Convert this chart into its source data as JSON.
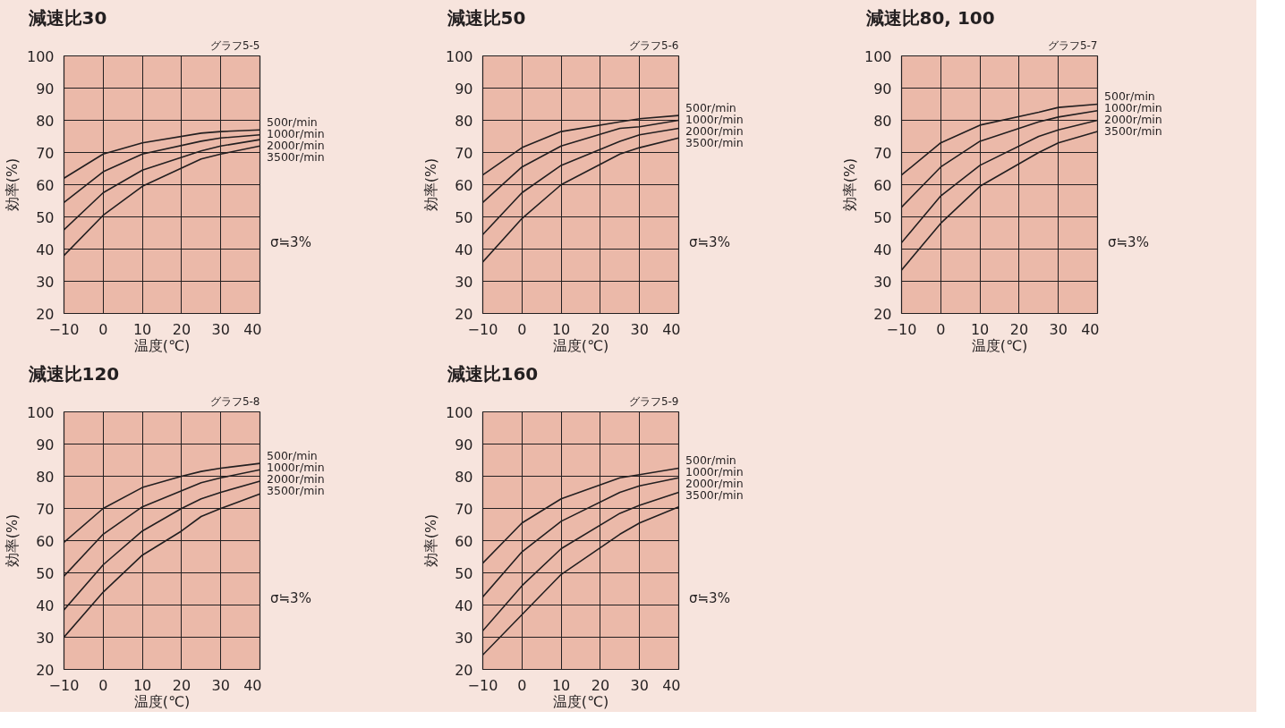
{
  "chart_data": [
    {
      "type": "line",
      "title": "減速比30",
      "subtitle": "グラフ5-5",
      "xlabel": "温度(℃)",
      "ylabel": "効率(%)",
      "annotations": [
        "σ≒3%"
      ],
      "x": [
        -10,
        0,
        10,
        25,
        30,
        40
      ],
      "xlim": [
        -10,
        40
      ],
      "ylim": [
        20,
        100
      ],
      "xticks": [
        -10,
        0,
        10,
        20,
        30,
        40
      ],
      "yticks": [
        20,
        30,
        40,
        50,
        60,
        70,
        80,
        90,
        100
      ],
      "grid": true,
      "series": [
        {
          "name": "500r/min",
          "color": "#231f20",
          "values": [
            62,
            69.5,
            73,
            76,
            76.5,
            77
          ]
        },
        {
          "name": "1000r/min",
          "color": "#231f20",
          "values": [
            54.5,
            64,
            69.5,
            73.5,
            74.5,
            75.5
          ]
        },
        {
          "name": "2000r/min",
          "color": "#231f20",
          "values": [
            46,
            57.5,
            64.5,
            70.5,
            72,
            74
          ]
        },
        {
          "name": "3500r/min",
          "color": "#231f20",
          "values": [
            38,
            50.5,
            59.5,
            68,
            69.5,
            72
          ]
        }
      ]
    },
    {
      "type": "line",
      "title": "減速比50",
      "subtitle": "グラフ5-6",
      "xlabel": "温度(℃)",
      "ylabel": "効率(%)",
      "annotations": [
        "σ≒3%"
      ],
      "x": [
        -10,
        0,
        10,
        25,
        30,
        40
      ],
      "xlim": [
        -10,
        40
      ],
      "ylim": [
        20,
        100
      ],
      "xticks": [
        -10,
        0,
        10,
        20,
        30,
        40
      ],
      "yticks": [
        20,
        30,
        40,
        50,
        60,
        70,
        80,
        90,
        100
      ],
      "grid": true,
      "series": [
        {
          "name": "500r/min",
          "color": "#231f20",
          "values": [
            63,
            71.5,
            76.5,
            79.5,
            80.5,
            81.5
          ]
        },
        {
          "name": "1000r/min",
          "color": "#231f20",
          "values": [
            54.5,
            65.5,
            72,
            77.5,
            78,
            80
          ]
        },
        {
          "name": "2000r/min",
          "color": "#231f20",
          "values": [
            44.5,
            57.5,
            66,
            73.5,
            75.5,
            77.5
          ]
        },
        {
          "name": "3500r/min",
          "color": "#231f20",
          "values": [
            36,
            49.5,
            60,
            69.5,
            71.5,
            74.5
          ]
        }
      ]
    },
    {
      "type": "line",
      "title": "減速比80, 100",
      "subtitle": "グラフ5-7",
      "xlabel": "温度(℃)",
      "ylabel": "効率(%)",
      "annotations": [
        "σ≒3%"
      ],
      "x": [
        -10,
        0,
        10,
        25,
        30,
        40
      ],
      "xlim": [
        -10,
        40
      ],
      "ylim": [
        20,
        100
      ],
      "xticks": [
        -10,
        0,
        10,
        20,
        30,
        40
      ],
      "yticks": [
        20,
        30,
        40,
        50,
        60,
        70,
        80,
        90,
        100
      ],
      "grid": true,
      "series": [
        {
          "name": "500r/min",
          "color": "#231f20",
          "values": [
            63,
            73,
            78.5,
            82.5,
            84,
            85
          ]
        },
        {
          "name": "1000r/min",
          "color": "#231f20",
          "values": [
            53,
            65.5,
            73.5,
            79.5,
            81,
            83
          ]
        },
        {
          "name": "2000r/min",
          "color": "#231f20",
          "values": [
            42,
            56.5,
            66,
            75,
            77,
            80
          ]
        },
        {
          "name": "3500r/min",
          "color": "#231f20",
          "values": [
            33.5,
            48,
            59.5,
            70,
            73,
            76.5
          ]
        }
      ]
    },
    {
      "type": "line",
      "title": "減速比120",
      "subtitle": "グラフ5-8",
      "xlabel": "温度(℃)",
      "ylabel": "効率(%)",
      "annotations": [
        "σ≒3%"
      ],
      "x": [
        -10,
        0,
        10,
        20,
        25,
        30,
        40
      ],
      "xlim": [
        -10,
        40
      ],
      "ylim": [
        20,
        100
      ],
      "xticks": [
        -10,
        0,
        10,
        20,
        30,
        40
      ],
      "yticks": [
        20,
        30,
        40,
        50,
        60,
        70,
        80,
        90,
        100
      ],
      "grid": true,
      "series": [
        {
          "name": "500r/min",
          "color": "#231f20",
          "values": [
            59.5,
            70,
            76.5,
            80,
            81.5,
            82.5,
            84
          ]
        },
        {
          "name": "1000r/min",
          "color": "#231f20",
          "values": [
            49,
            62,
            70.5,
            75.5,
            78,
            79.5,
            82
          ]
        },
        {
          "name": "2000r/min",
          "color": "#231f20",
          "values": [
            38.5,
            52.5,
            63,
            70,
            73,
            75,
            78.5
          ]
        },
        {
          "name": "3500r/min",
          "color": "#231f20",
          "values": [
            30,
            44,
            55.5,
            63,
            67.5,
            70,
            74.5
          ]
        }
      ]
    },
    {
      "type": "line",
      "title": "減速比160",
      "subtitle": "グラフ5-9",
      "xlabel": "温度(℃)",
      "ylabel": "効率(%)",
      "annotations": [
        "σ≒3%"
      ],
      "x": [
        -10,
        0,
        10,
        25,
        30,
        40
      ],
      "xlim": [
        -10,
        40
      ],
      "ylim": [
        20,
        100
      ],
      "xticks": [
        -10,
        0,
        10,
        20,
        30,
        40
      ],
      "yticks": [
        20,
        30,
        40,
        50,
        60,
        70,
        80,
        90,
        100
      ],
      "grid": true,
      "series": [
        {
          "name": "500r/min",
          "color": "#231f20",
          "values": [
            53,
            65.5,
            73,
            79.5,
            80.5,
            82.5
          ]
        },
        {
          "name": "1000r/min",
          "color": "#231f20",
          "values": [
            42.5,
            56.5,
            66,
            75,
            77,
            79.5
          ]
        },
        {
          "name": "2000r/min",
          "color": "#231f20",
          "values": [
            32,
            46,
            57.5,
            68.5,
            71,
            75
          ]
        },
        {
          "name": "3500r/min",
          "color": "#231f20",
          "values": [
            24.5,
            37,
            49.5,
            62,
            65.5,
            70.5
          ]
        }
      ]
    }
  ]
}
